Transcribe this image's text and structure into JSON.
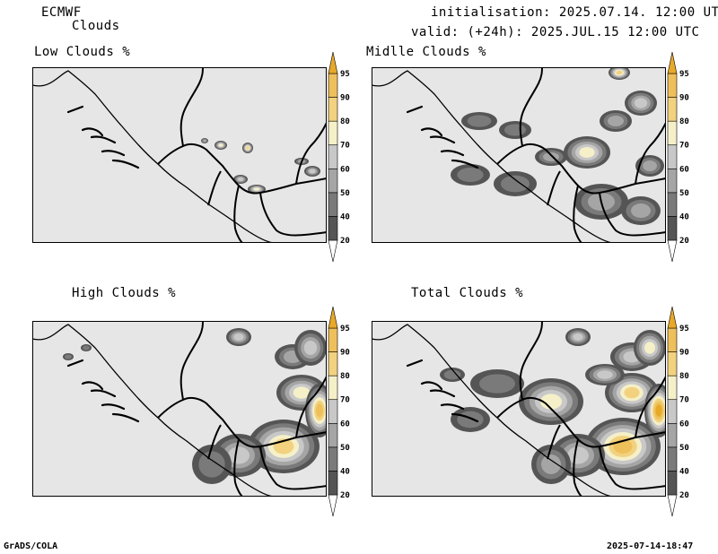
{
  "header": {
    "model": "ECMWF",
    "product": "Clouds",
    "init_text": "initialisation: 2025.07.14. 12:00 UTC",
    "valid_text": "valid: (+24h): 2025.JUL.15 12:00 UTC"
  },
  "footer": {
    "software": "GrADS/COLA",
    "timestamp": "2025-07-14-18:47"
  },
  "colorbar": {
    "levels": [
      "20",
      "40",
      "50",
      "60",
      "70",
      "80",
      "90",
      "95"
    ],
    "colors": [
      "#ffffff",
      "#555555",
      "#7a7a7a",
      "#a5a5a5",
      "#c8c8c8",
      "#f5f0c8",
      "#f2d27f",
      "#eec05c",
      "#e8a828"
    ]
  },
  "chart_data": [
    {
      "type": "heatmap",
      "title": "Low Clouds %",
      "variable": "low cloud cover",
      "unit": "%",
      "levels": [
        20,
        40,
        50,
        60,
        70,
        80,
        90,
        95
      ],
      "max_cover_approx": 80,
      "coverage": "isolated small patches"
    },
    {
      "type": "heatmap",
      "title": "Midlle Clouds %",
      "variable": "middle cloud cover",
      "unit": "%",
      "levels": [
        20,
        40,
        50,
        60,
        70,
        80,
        90,
        95
      ],
      "max_cover_approx": 95,
      "coverage": "scattered, broader in east"
    },
    {
      "type": "heatmap",
      "title": "High Clouds %",
      "variable": "high cloud cover",
      "unit": "%",
      "levels": [
        20,
        40,
        50,
        60,
        70,
        80,
        90,
        95
      ],
      "max_cover_approx": 95,
      "coverage": "concentrated in east and south-east"
    },
    {
      "type": "heatmap",
      "title": "Total Clouds %",
      "variable": "total cloud cover",
      "unit": "%",
      "levels": [
        20,
        40,
        50,
        60,
        70,
        80,
        90,
        95
      ],
      "max_cover_approx": 95,
      "coverage": "widespread in east and south-east"
    }
  ]
}
